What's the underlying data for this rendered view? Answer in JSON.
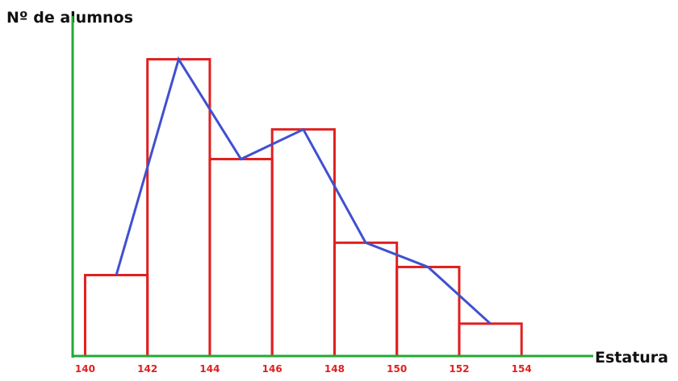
{
  "chart_data": {
    "type": "histogram",
    "y_label": "Nº de alumnos",
    "x_label": "Estatura",
    "bins": [
      140,
      142,
      144,
      146,
      148,
      150,
      152,
      154
    ],
    "values": [
      3,
      11,
      7.3,
      8.4,
      4.2,
      3.3,
      1.2
    ],
    "color": "#e02020",
    "polygon_color": "#4050d0",
    "axis_color": "#22aa33",
    "xlim": [
      139.6,
      156.3
    ],
    "ylim": [
      0,
      12.6
    ]
  }
}
